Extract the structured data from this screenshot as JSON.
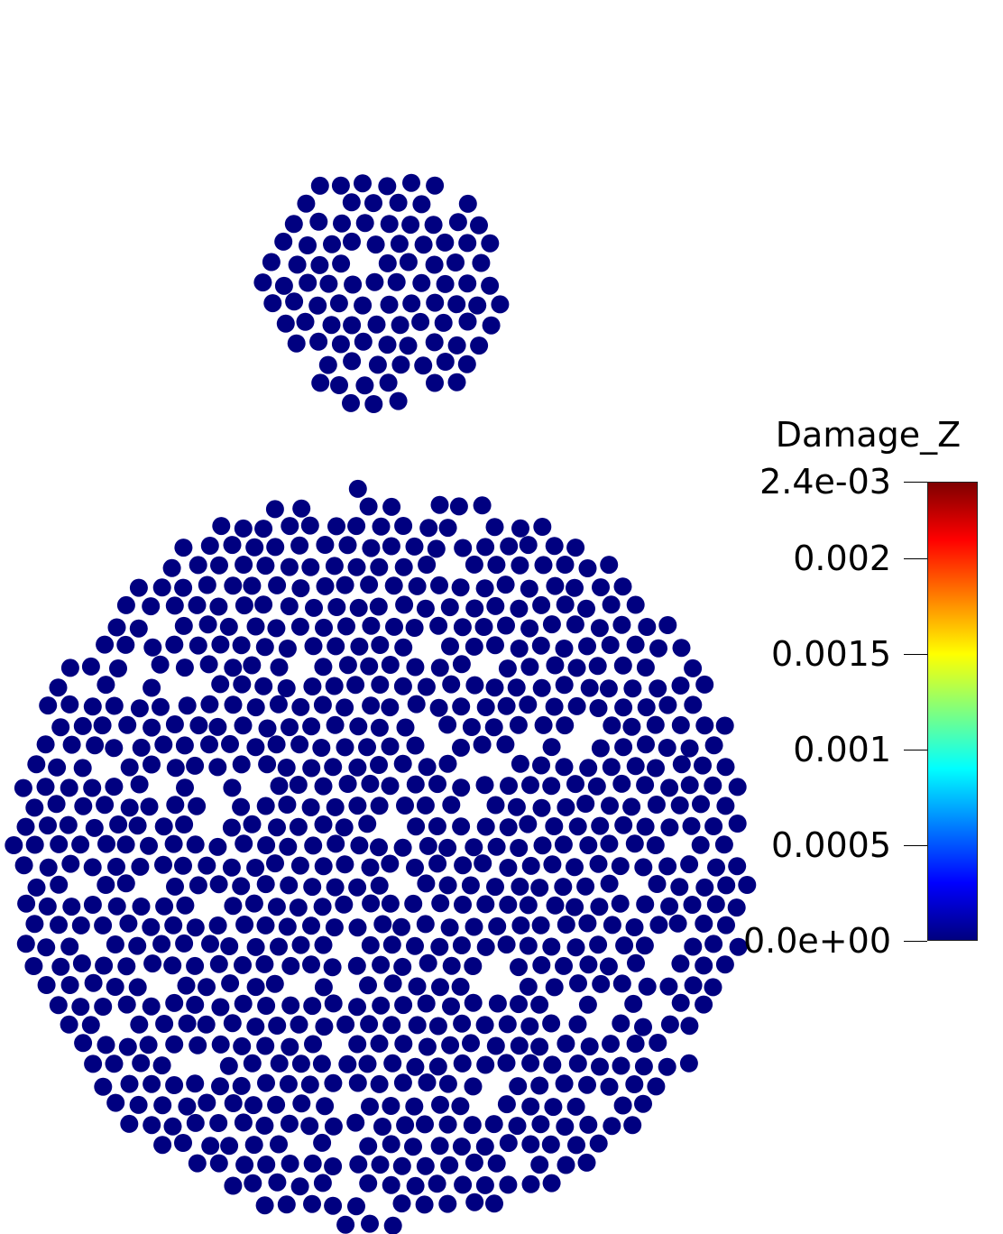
{
  "particle_color": "#000080",
  "colormap": [
    "#00007f",
    "#0000ff",
    "#007fff",
    "#00ffff",
    "#7fff7f",
    "#ffff00",
    "#ff7f00",
    "#ff0000",
    "#7f0000"
  ],
  "legend": {
    "title": "Damage_Z",
    "range": [
      0,
      0.0024
    ],
    "ticks": [
      {
        "value": 0.0024,
        "label": "2.4e-03"
      },
      {
        "value": 0.002,
        "label": "0.002"
      },
      {
        "value": 0.0015,
        "label": "0.0015"
      },
      {
        "value": 0.001,
        "label": "0.001"
      },
      {
        "value": 0.0005,
        "label": "0.0005"
      },
      {
        "value": 0,
        "label": "0.0e+00"
      }
    ]
  }
}
